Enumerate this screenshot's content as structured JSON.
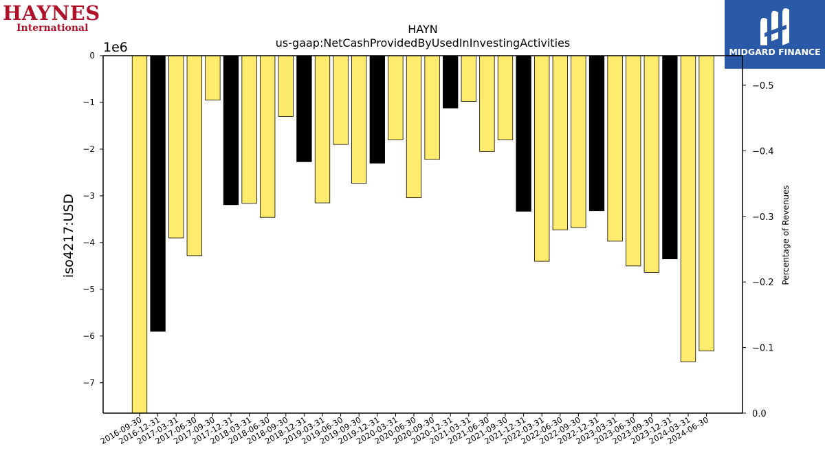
{
  "logos": {
    "left": {
      "line1": "HAYNES",
      "line2": "International"
    },
    "right": {
      "text": "MIDGARD FINANCE"
    }
  },
  "chart_data": {
    "type": "bar",
    "title": "HAYN",
    "subtitle": "us-gaap:NetCashProvidedByUsedInInvestingActivities",
    "ylabel": "iso4217:USD",
    "y_offset_label": "1e6",
    "y2label": "Percentage of Revenues",
    "ylim": [
      -7.65,
      0
    ],
    "y2lim": [
      0.0,
      -0.545
    ],
    "yticks": [
      {
        "v": 0,
        "label": "0"
      },
      {
        "v": -1,
        "label": "−1"
      },
      {
        "v": -2,
        "label": "−2"
      },
      {
        "v": -3,
        "label": "−3"
      },
      {
        "v": -4,
        "label": "−4"
      },
      {
        "v": -5,
        "label": "−5"
      },
      {
        "v": -6,
        "label": "−6"
      },
      {
        "v": -7,
        "label": "−7"
      }
    ],
    "y2ticks": [
      {
        "v": 0.0,
        "label": "0.0"
      },
      {
        "v": -0.1,
        "label": "−0.1"
      },
      {
        "v": -0.2,
        "label": "−0.2"
      },
      {
        "v": -0.3,
        "label": "−0.3"
      },
      {
        "v": -0.4,
        "label": "−0.4"
      },
      {
        "v": -0.5,
        "label": "−0.5"
      }
    ],
    "colors": {
      "quarter": "#ffec6e",
      "year_end": "#000000",
      "edge": "#000000"
    },
    "categories": [
      "2016-09-30",
      "2016-12-31",
      "2017-03-31",
      "2017-06-30",
      "2017-09-30",
      "2017-12-31",
      "2018-03-31",
      "2018-06-30",
      "2018-09-30",
      "2018-12-31",
      "2019-03-31",
      "2019-06-30",
      "2019-09-30",
      "2019-12-31",
      "2020-03-31",
      "2020-06-30",
      "2020-09-30",
      "2020-12-31",
      "2021-03-31",
      "2021-06-30",
      "2021-09-30",
      "2021-12-31",
      "2022-03-31",
      "2022-06-30",
      "2022-09-30",
      "2022-12-31",
      "2023-03-31",
      "2023-06-30",
      "2023-09-30",
      "2023-12-31",
      "2024-03-31",
      "2024-06-30"
    ],
    "values": [
      -7.65,
      -5.9,
      -3.9,
      -4.28,
      -0.95,
      -3.19,
      -3.16,
      -3.46,
      -1.3,
      -2.27,
      -3.15,
      -1.9,
      -2.73,
      -2.3,
      -1.8,
      -3.04,
      -2.22,
      -1.12,
      -0.98,
      -2.05,
      -1.8,
      -3.33,
      -4.4,
      -3.73,
      -3.68,
      -3.32,
      -3.97,
      -4.5,
      -4.64,
      -4.35,
      -6.55,
      -6.32
    ],
    "highlight": [
      false,
      true,
      false,
      false,
      false,
      true,
      false,
      false,
      false,
      true,
      false,
      false,
      false,
      true,
      false,
      false,
      false,
      true,
      false,
      false,
      false,
      true,
      false,
      false,
      false,
      true,
      false,
      false,
      false,
      true,
      false,
      false
    ]
  }
}
